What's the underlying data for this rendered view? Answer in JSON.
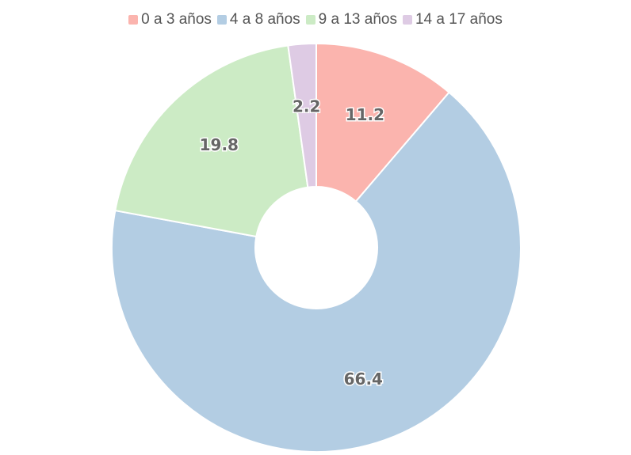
{
  "chart_data": {
    "type": "pie",
    "donut": true,
    "title": "",
    "legend_position": "top",
    "categories": [
      "0 a 3 años",
      "4 a 8 años",
      "9 a 13 años",
      "14 a 17 años"
    ],
    "values": [
      11.2,
      66.4,
      19.8,
      2.2
    ],
    "labels": [
      "11.2",
      "66.4",
      "19.8",
      "2.2"
    ],
    "colors": [
      "#fbb4ae",
      "#b3cde3",
      "#ccebc5",
      "#decbe4"
    ]
  }
}
